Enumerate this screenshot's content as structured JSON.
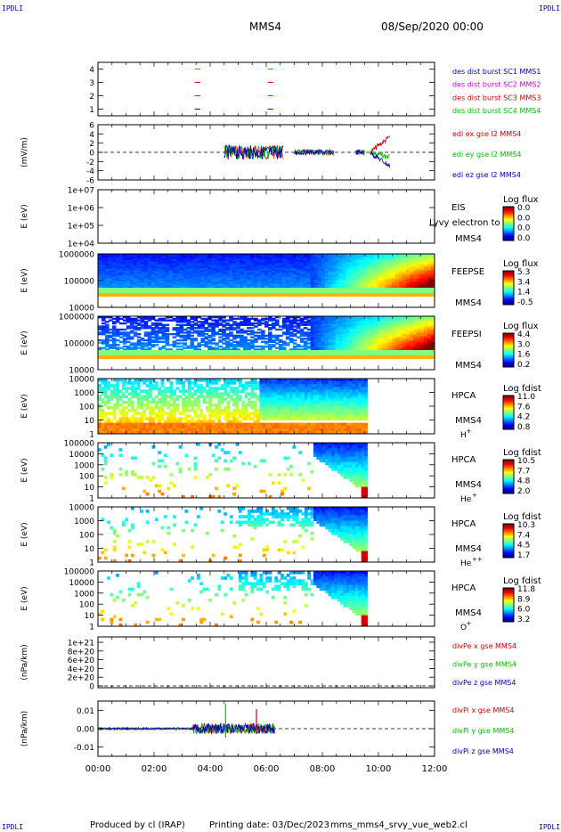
{
  "corners": {
    "left": "IPDLI",
    "right": "IPDLI"
  },
  "header": {
    "spacecraft": "MMS4",
    "datetime": "08/Sep/2020 00:00"
  },
  "footer": {
    "producer": "Produced by cl (IRAP)",
    "printing": "Printing date: 03/Dec/2023",
    "file": "mms_mms4_srvy_vue_web2.cl"
  },
  "colors": {
    "red": "#d00000",
    "green": "#00c000",
    "blue": "#0000c0",
    "magenta": "#d000d0",
    "text_blue": "#0000aa"
  },
  "chart_data": [
    {
      "id": "p1",
      "type": "scatter",
      "title": "",
      "ylabel": "",
      "ylim": [
        0.5,
        4.5
      ],
      "yticks": [
        "1",
        "2",
        "3",
        "4"
      ],
      "legend": [
        "des dist burst SC1 MMS1",
        "des dist burst SC2 MMS2",
        "des dist burst SC3 MMS3",
        "des dist burst SC4 MMS4"
      ],
      "legend_colors": [
        "#0000c0",
        "#d000d0",
        "#d00000",
        "#00c000"
      ],
      "series": [
        {
          "values": [
            [
              3.55,
              4
            ],
            [
              6.15,
              4
            ]
          ]
        },
        {
          "values": [
            [
              3.55,
              3
            ],
            [
              6.15,
              3
            ]
          ]
        },
        {
          "values": [
            [
              3.55,
              2
            ],
            [
              6.15,
              2
            ]
          ]
        },
        {
          "values": [
            [
              3.55,
              1
            ],
            [
              6.15,
              1
            ]
          ]
        }
      ]
    },
    {
      "id": "p2",
      "type": "line",
      "ylabel": "(mV/m)",
      "ylim": [
        -6,
        6
      ],
      "yticks": [
        "-6",
        "-4",
        "-2",
        "0",
        "2",
        "4",
        "6"
      ],
      "legend": [
        "edi ex gse l2 MMS4",
        "edi ey gse l2 MMS4",
        "edi ez gse l2 MMS4"
      ],
      "legend_colors": [
        "#d00000",
        "#00c000",
        "#0000c0"
      ]
    },
    {
      "id": "p3",
      "type": "heatmap",
      "ylabel": "E (eV)",
      "yticks": [
        "1e+04",
        "1e+05",
        "1e+06",
        "1e+07"
      ],
      "labels": [
        "EIS",
        "MMS4"
      ],
      "overlay": "Lyvy electron to",
      "colorbar": {
        "title": "Log flux",
        "ticks": [
          "0.0",
          "0.0",
          "0.0",
          "0.0"
        ]
      }
    },
    {
      "id": "p4",
      "type": "heatmap",
      "ylabel": "E (eV)",
      "yticks": [
        "10000",
        "100000",
        "1000000"
      ],
      "labels": [
        "FEEPSE",
        "MMS4"
      ],
      "colorbar": {
        "title": "Log flux",
        "ticks": [
          "5.3",
          "3.4",
          "1.4",
          "-0.5"
        ]
      }
    },
    {
      "id": "p5",
      "type": "heatmap",
      "ylabel": "E (eV)",
      "yticks": [
        "10000",
        "100000",
        "1000000"
      ],
      "labels": [
        "FEEPSI",
        "MMS4"
      ],
      "colorbar": {
        "title": "Log flux",
        "ticks": [
          "4.4",
          "3.0",
          "1.6",
          "0.2"
        ]
      }
    },
    {
      "id": "p6",
      "type": "heatmap",
      "ylabel": "E (eV)",
      "yticks": [
        "1",
        "10",
        "100",
        "1000",
        "10000"
      ],
      "labels": [
        "HPCA",
        "MMS4"
      ],
      "species": "H",
      "charge": "+",
      "colorbar": {
        "title": "Log fdist",
        "ticks": [
          "11.0",
          "7.6",
          "4.2",
          "0.8"
        ]
      }
    },
    {
      "id": "p7",
      "type": "heatmap",
      "ylabel": "E (eV)",
      "yticks": [
        "1",
        "10",
        "100",
        "1000",
        "10000",
        "100000"
      ],
      "labels": [
        "HPCA",
        "MMS4"
      ],
      "species": "He",
      "charge": "+",
      "colorbar": {
        "title": "Log fdist",
        "ticks": [
          "10.5",
          "7.7",
          "4.8",
          "2.0"
        ]
      }
    },
    {
      "id": "p8",
      "type": "heatmap",
      "ylabel": "E (eV)",
      "yticks": [
        "1",
        "10",
        "100",
        "1000",
        "10000"
      ],
      "labels": [
        "HPCA",
        "MMS4"
      ],
      "species": "He",
      "charge": "++",
      "colorbar": {
        "title": "Log fdist",
        "ticks": [
          "10.3",
          "7.4",
          "4.5",
          "1.7"
        ]
      }
    },
    {
      "id": "p9",
      "type": "heatmap",
      "ylabel": "E (eV)",
      "yticks": [
        "1",
        "10",
        "100",
        "1000",
        "10000",
        "100000"
      ],
      "labels": [
        "HPCA",
        "MMS4"
      ],
      "species": "O",
      "charge": "+",
      "colorbar": {
        "title": "Log fdist",
        "ticks": [
          "11.8",
          "8.9",
          "6.0",
          "3.2"
        ]
      }
    },
    {
      "id": "p10",
      "type": "line",
      "ylabel": "(nPa/km)",
      "ylim": [
        0,
        1e+21
      ],
      "yticks": [
        "0",
        "2e+20",
        "4e+20",
        "6e+20",
        "8e+20",
        "1e+21"
      ],
      "legend": [
        "divPe x gse MMS4",
        "divPe y gse MMS4",
        "divPe z gse MMS4"
      ],
      "legend_colors": [
        "#d00000",
        "#00c000",
        "#0000c0"
      ]
    },
    {
      "id": "p11",
      "type": "line",
      "ylabel": "(nPa/km)",
      "ylim": [
        -0.015,
        0.015
      ],
      "yticks": [
        "-0.01",
        "0.00",
        "0.01"
      ],
      "legend": [
        "divPi x gse MMS4",
        "divPi y gse MMS4",
        "divPi z gse MMS4"
      ],
      "legend_colors": [
        "#d00000",
        "#00c000",
        "#0000c0"
      ]
    }
  ],
  "time_axis": {
    "xlim_hours": [
      0,
      12
    ],
    "ticks": [
      "00:00",
      "02:00",
      "04:00",
      "06:00",
      "08:00",
      "10:00",
      "12:00"
    ]
  }
}
